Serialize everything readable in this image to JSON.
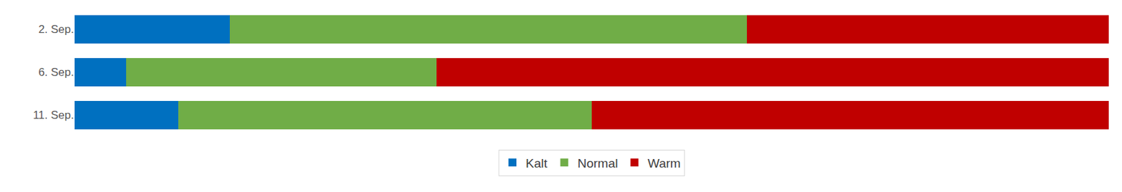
{
  "chart_data": {
    "type": "bar",
    "orientation": "horizontal",
    "stacked": true,
    "categories": [
      "2. Sep.",
      "6. Sep.",
      "11. Sep."
    ],
    "series": [
      {
        "name": "Kalt",
        "color": "#0070C0",
        "values": [
          15,
          5,
          10
        ]
      },
      {
        "name": "Normal",
        "color": "#70AD47",
        "values": [
          50,
          30,
          40
        ]
      },
      {
        "name": "Warm",
        "color": "#C00000",
        "values": [
          35,
          65,
          50
        ]
      }
    ],
    "xlim": [
      0,
      100
    ],
    "tick_labels": "y",
    "grid": false,
    "legend": "bottom"
  }
}
